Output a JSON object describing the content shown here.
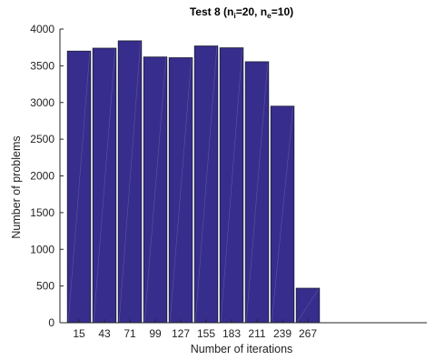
{
  "chart_data": {
    "type": "bar",
    "title": {
      "prefix": "Test 8 (n",
      "sub1": "i",
      "mid": "=20, n",
      "sub2": "e",
      "suffix": "=10)"
    },
    "xlabel": "Number of iterations",
    "ylabel": "Number of problems",
    "categories": [
      "15",
      "43",
      "71",
      "99",
      "127",
      "155",
      "183",
      "211",
      "239",
      "267"
    ],
    "values": [
      3700,
      3740,
      3840,
      3620,
      3610,
      3770,
      3745,
      3555,
      2950,
      470
    ],
    "ylim": [
      0,
      4000
    ],
    "yticks": [
      "0",
      "500",
      "1000",
      "1500",
      "2000",
      "2500",
      "3000",
      "3500",
      "4000"
    ],
    "grid": false,
    "colors": {
      "bar_fill": "#372d8c",
      "bar_edge": "#1c1c33",
      "axis": "#262626"
    }
  }
}
